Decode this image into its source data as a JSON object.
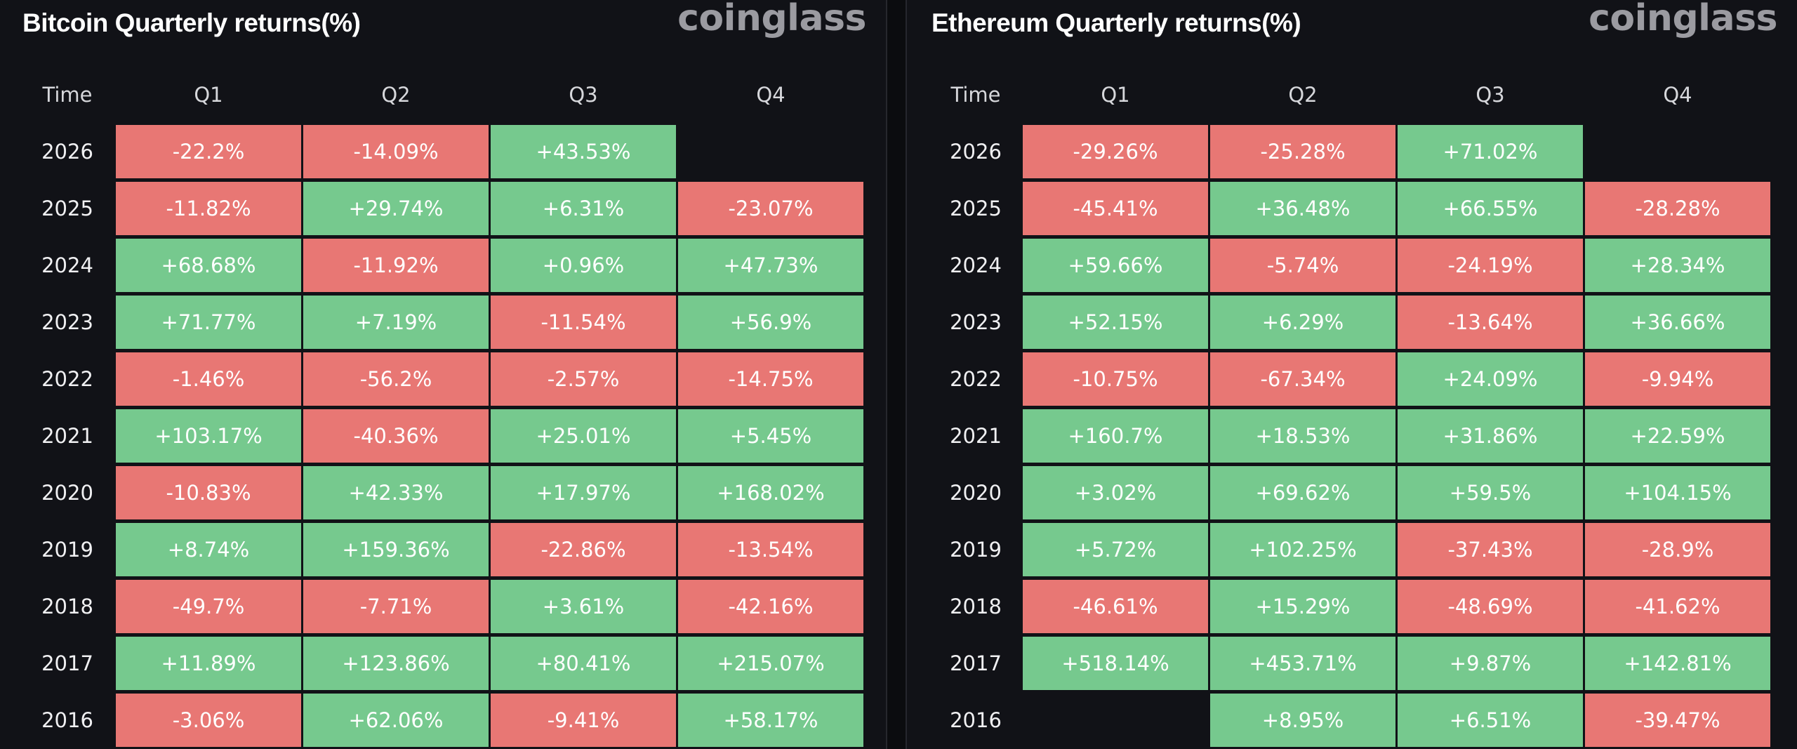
{
  "colors": {
    "positive": "#76c98e",
    "negative": "#e87774",
    "background": "#111217",
    "brand": "#9b9ba1"
  },
  "brand": "coinglass",
  "chart_data": [
    {
      "type": "table",
      "title": "Bitcoin Quarterly returns(%)",
      "columns": [
        "Time",
        "Q1",
        "Q2",
        "Q3",
        "Q4"
      ],
      "rows": [
        {
          "year": "2026",
          "values": [
            "-22.2%",
            "-14.09%",
            "+43.53%",
            ""
          ]
        },
        {
          "year": "2025",
          "values": [
            "-11.82%",
            "+29.74%",
            "+6.31%",
            "-23.07%"
          ]
        },
        {
          "year": "2024",
          "values": [
            "+68.68%",
            "-11.92%",
            "+0.96%",
            "+47.73%"
          ]
        },
        {
          "year": "2023",
          "values": [
            "+71.77%",
            "+7.19%",
            "-11.54%",
            "+56.9%"
          ]
        },
        {
          "year": "2022",
          "values": [
            "-1.46%",
            "-56.2%",
            "-2.57%",
            "-14.75%"
          ]
        },
        {
          "year": "2021",
          "values": [
            "+103.17%",
            "-40.36%",
            "+25.01%",
            "+5.45%"
          ]
        },
        {
          "year": "2020",
          "values": [
            "-10.83%",
            "+42.33%",
            "+17.97%",
            "+168.02%"
          ]
        },
        {
          "year": "2019",
          "values": [
            "+8.74%",
            "+159.36%",
            "-22.86%",
            "-13.54%"
          ]
        },
        {
          "year": "2018",
          "values": [
            "-49.7%",
            "-7.71%",
            "+3.61%",
            "-42.16%"
          ]
        },
        {
          "year": "2017",
          "values": [
            "+11.89%",
            "+123.86%",
            "+80.41%",
            "+215.07%"
          ]
        },
        {
          "year": "2016",
          "values": [
            "-3.06%",
            "+62.06%",
            "-9.41%",
            "+58.17%"
          ]
        }
      ]
    },
    {
      "type": "table",
      "title": "Ethereum Quarterly returns(%)",
      "columns": [
        "Time",
        "Q1",
        "Q2",
        "Q3",
        "Q4"
      ],
      "rows": [
        {
          "year": "2026",
          "values": [
            "-29.26%",
            "-25.28%",
            "+71.02%",
            ""
          ]
        },
        {
          "year": "2025",
          "values": [
            "-45.41%",
            "+36.48%",
            "+66.55%",
            "-28.28%"
          ]
        },
        {
          "year": "2024",
          "values": [
            "+59.66%",
            "-5.74%",
            "-24.19%",
            "+28.34%"
          ]
        },
        {
          "year": "2023",
          "values": [
            "+52.15%",
            "+6.29%",
            "-13.64%",
            "+36.66%"
          ]
        },
        {
          "year": "2022",
          "values": [
            "-10.75%",
            "-67.34%",
            "+24.09%",
            "-9.94%"
          ]
        },
        {
          "year": "2021",
          "values": [
            "+160.7%",
            "+18.53%",
            "+31.86%",
            "+22.59%"
          ]
        },
        {
          "year": "2020",
          "values": [
            "+3.02%",
            "+69.62%",
            "+59.5%",
            "+104.15%"
          ]
        },
        {
          "year": "2019",
          "values": [
            "+5.72%",
            "+102.25%",
            "-37.43%",
            "-28.9%"
          ]
        },
        {
          "year": "2018",
          "values": [
            "-46.61%",
            "+15.29%",
            "-48.69%",
            "-41.62%"
          ]
        },
        {
          "year": "2017",
          "values": [
            "+518.14%",
            "+453.71%",
            "+9.87%",
            "+142.81%"
          ]
        },
        {
          "year": "2016",
          "values": [
            "",
            "+8.95%",
            "+6.51%",
            "-39.47%"
          ]
        }
      ]
    }
  ]
}
